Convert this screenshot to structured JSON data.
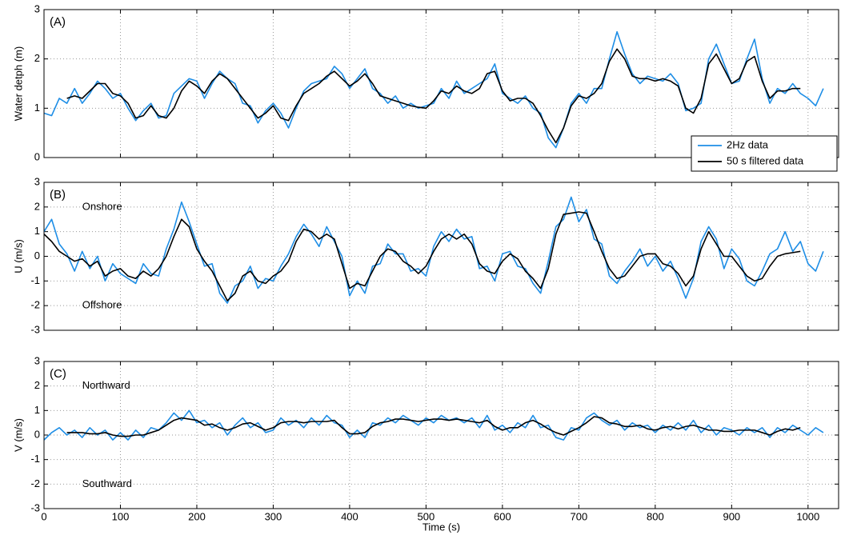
{
  "chart_data": [
    {
      "type": "line",
      "panel_label": "(A)",
      "ylabel": "Water detph (m)",
      "legend": "lower right",
      "grid": true,
      "x_tick_labels": false,
      "xlim": [
        0,
        1040
      ],
      "ylim": [
        0,
        3
      ],
      "xticks": [
        0,
        100,
        200,
        300,
        400,
        500,
        600,
        700,
        800,
        900,
        1000
      ],
      "yticks": [
        0,
        1,
        2,
        3
      ],
      "x": [
        0,
        10,
        20,
        30,
        40,
        50,
        60,
        70,
        80,
        90,
        100,
        110,
        120,
        130,
        140,
        150,
        160,
        170,
        180,
        190,
        200,
        210,
        220,
        230,
        240,
        250,
        260,
        270,
        280,
        290,
        300,
        310,
        320,
        330,
        340,
        350,
        360,
        370,
        380,
        390,
        400,
        410,
        420,
        430,
        440,
        450,
        460,
        470,
        480,
        490,
        500,
        510,
        520,
        530,
        540,
        550,
        560,
        570,
        580,
        590,
        600,
        610,
        620,
        630,
        640,
        650,
        660,
        670,
        680,
        690,
        700,
        710,
        720,
        730,
        740,
        750,
        760,
        770,
        780,
        790,
        800,
        810,
        820,
        830,
        840,
        850,
        860,
        870,
        880,
        890,
        900,
        910,
        920,
        930,
        940,
        950,
        960,
        970,
        980,
        990,
        1000,
        1010,
        1020
      ],
      "series": [
        {
          "name": "2Hz data",
          "color": "#1e8ee6",
          "values": [
            0.9,
            0.85,
            1.2,
            1.1,
            1.4,
            1.1,
            1.3,
            1.55,
            1.4,
            1.2,
            1.3,
            1.0,
            0.75,
            0.95,
            1.1,
            0.8,
            0.85,
            1.3,
            1.45,
            1.6,
            1.55,
            1.2,
            1.5,
            1.75,
            1.6,
            1.5,
            1.1,
            1.05,
            0.7,
            0.95,
            1.1,
            0.9,
            0.6,
            1.0,
            1.35,
            1.5,
            1.55,
            1.6,
            1.85,
            1.7,
            1.4,
            1.6,
            1.8,
            1.4,
            1.3,
            1.1,
            1.25,
            1.0,
            1.1,
            1.0,
            1.05,
            1.1,
            1.4,
            1.2,
            1.55,
            1.3,
            1.4,
            1.5,
            1.6,
            1.9,
            1.3,
            1.2,
            1.1,
            1.25,
            1.0,
            0.9,
            0.4,
            0.2,
            0.6,
            1.1,
            1.3,
            1.1,
            1.4,
            1.4,
            2.0,
            2.55,
            2.1,
            1.7,
            1.5,
            1.65,
            1.6,
            1.55,
            1.7,
            1.5,
            0.95,
            1.0,
            1.1,
            2.0,
            2.3,
            1.9,
            1.5,
            1.55,
            2.0,
            2.4,
            1.6,
            1.1,
            1.4,
            1.3,
            1.5,
            1.3,
            1.2,
            1.05,
            1.4
          ]
        },
        {
          "name": "50 s filtered data",
          "color": "#000000",
          "values": [
            null,
            null,
            null,
            1.2,
            1.25,
            1.2,
            1.35,
            1.5,
            1.5,
            1.3,
            1.25,
            1.1,
            0.8,
            0.85,
            1.05,
            0.85,
            0.8,
            1.0,
            1.35,
            1.55,
            1.45,
            1.3,
            1.55,
            1.7,
            1.6,
            1.4,
            1.2,
            1.0,
            0.8,
            0.9,
            1.05,
            0.8,
            0.75,
            1.05,
            1.3,
            1.4,
            1.5,
            1.65,
            1.75,
            1.6,
            1.45,
            1.55,
            1.7,
            1.5,
            1.25,
            1.2,
            1.15,
            1.1,
            1.05,
            1.02,
            1.0,
            1.15,
            1.35,
            1.3,
            1.45,
            1.35,
            1.3,
            1.4,
            1.7,
            1.75,
            1.35,
            1.15,
            1.2,
            1.2,
            1.1,
            0.85,
            0.55,
            0.3,
            0.6,
            1.05,
            1.25,
            1.2,
            1.3,
            1.5,
            1.95,
            2.2,
            2.0,
            1.65,
            1.6,
            1.6,
            1.55,
            1.6,
            1.55,
            1.45,
            1.0,
            0.9,
            1.2,
            1.9,
            2.1,
            1.8,
            1.5,
            1.6,
            1.95,
            2.05,
            1.55,
            1.2,
            1.35,
            1.35,
            1.4,
            1.4,
            null,
            null,
            null
          ]
        }
      ]
    },
    {
      "type": "line",
      "panel_label": "(B)",
      "ylabel": "U (m/s)",
      "annotations": [
        "Onshore",
        "Offshore"
      ],
      "grid": true,
      "x_tick_labels": false,
      "xlim": [
        0,
        1040
      ],
      "ylim": [
        -3,
        3
      ],
      "xticks": [
        0,
        100,
        200,
        300,
        400,
        500,
        600,
        700,
        800,
        900,
        1000
      ],
      "yticks": [
        -3,
        -2,
        -1,
        0,
        1,
        2,
        3
      ],
      "x": [
        0,
        10,
        20,
        30,
        40,
        50,
        60,
        70,
        80,
        90,
        100,
        110,
        120,
        130,
        140,
        150,
        160,
        170,
        180,
        190,
        200,
        210,
        220,
        230,
        240,
        250,
        260,
        270,
        280,
        290,
        300,
        310,
        320,
        330,
        340,
        350,
        360,
        370,
        380,
        390,
        400,
        410,
        420,
        430,
        440,
        450,
        460,
        470,
        480,
        490,
        500,
        510,
        520,
        530,
        540,
        550,
        560,
        570,
        580,
        590,
        600,
        610,
        620,
        630,
        640,
        650,
        660,
        670,
        680,
        690,
        700,
        710,
        720,
        730,
        740,
        750,
        760,
        770,
        780,
        790,
        800,
        810,
        820,
        830,
        840,
        850,
        860,
        870,
        880,
        890,
        900,
        910,
        920,
        930,
        940,
        950,
        960,
        970,
        980,
        990,
        1000,
        1010,
        1020
      ],
      "series": [
        {
          "color": "#1e8ee6",
          "values": [
            1.0,
            1.5,
            0.5,
            0.1,
            -0.6,
            0.2,
            -0.5,
            0.0,
            -1.0,
            -0.3,
            -0.7,
            -0.9,
            -1.1,
            -0.3,
            -0.7,
            -0.8,
            0.3,
            1.1,
            2.2,
            1.4,
            0.5,
            -0.4,
            -0.3,
            -1.5,
            -1.9,
            -1.2,
            -1.0,
            -0.4,
            -1.3,
            -0.9,
            -1.0,
            -0.4,
            0.1,
            0.8,
            1.3,
            0.9,
            0.4,
            1.2,
            0.6,
            0.0,
            -1.6,
            -1.0,
            -1.5,
            -0.4,
            -0.3,
            0.5,
            0.1,
            0.1,
            -0.6,
            -0.5,
            -0.8,
            0.4,
            1.0,
            0.6,
            1.1,
            0.7,
            0.8,
            -0.5,
            -0.4,
            -1.0,
            0.1,
            0.2,
            -0.4,
            -0.5,
            -1.1,
            -1.5,
            -0.2,
            1.2,
            1.5,
            2.4,
            1.4,
            1.9,
            0.7,
            0.5,
            -0.8,
            -1.1,
            -0.6,
            -0.2,
            0.3,
            -0.4,
            0.0,
            -0.6,
            -0.2,
            -0.9,
            -1.7,
            -0.9,
            0.6,
            1.2,
            0.7,
            -0.5,
            0.3,
            -0.1,
            -1.0,
            -1.2,
            -0.6,
            0.1,
            0.3,
            1.0,
            0.2,
            0.6,
            -0.3,
            -0.6,
            0.2
          ]
        },
        {
          "color": "#000000",
          "values": [
            0.9,
            0.6,
            0.2,
            0.0,
            -0.2,
            -0.1,
            -0.4,
            -0.2,
            -0.8,
            -0.6,
            -0.5,
            -0.8,
            -0.9,
            -0.6,
            -0.8,
            -0.5,
            0.0,
            0.8,
            1.5,
            1.2,
            0.3,
            -0.2,
            -0.6,
            -1.2,
            -1.8,
            -1.5,
            -0.8,
            -0.6,
            -1.0,
            -1.1,
            -0.8,
            -0.6,
            -0.2,
            0.6,
            1.1,
            1.0,
            0.7,
            0.9,
            0.7,
            -0.3,
            -1.3,
            -1.1,
            -1.2,
            -0.6,
            0.0,
            0.3,
            0.2,
            -0.2,
            -0.4,
            -0.7,
            -0.4,
            0.2,
            0.7,
            0.9,
            0.7,
            0.9,
            0.5,
            -0.3,
            -0.6,
            -0.7,
            -0.2,
            0.1,
            -0.1,
            -0.6,
            -0.9,
            -1.3,
            -0.5,
            0.9,
            1.7,
            1.75,
            1.8,
            1.75,
            1.0,
            0.2,
            -0.5,
            -0.9,
            -0.8,
            -0.4,
            0.0,
            0.1,
            0.1,
            -0.3,
            -0.4,
            -0.7,
            -1.2,
            -0.8,
            0.3,
            1.0,
            0.5,
            0.0,
            0.0,
            -0.4,
            -0.8,
            -1.0,
            -0.9,
            -0.4,
            0.0,
            0.1,
            0.15,
            0.2,
            null,
            null,
            null
          ]
        }
      ]
    },
    {
      "type": "line",
      "panel_label": "(C)",
      "ylabel": "V (m/s)",
      "xlabel": "Time (s)",
      "annotations": [
        "Northward",
        "Southward"
      ],
      "grid": true,
      "x_tick_labels": true,
      "xlim": [
        0,
        1040
      ],
      "ylim": [
        -3,
        3
      ],
      "xticks": [
        0,
        100,
        200,
        300,
        400,
        500,
        600,
        700,
        800,
        900,
        1000
      ],
      "yticks": [
        -3,
        -2,
        -1,
        0,
        1,
        2,
        3
      ],
      "x": [
        0,
        10,
        20,
        30,
        40,
        50,
        60,
        70,
        80,
        90,
        100,
        110,
        120,
        130,
        140,
        150,
        160,
        170,
        180,
        190,
        200,
        210,
        220,
        230,
        240,
        250,
        260,
        270,
        280,
        290,
        300,
        310,
        320,
        330,
        340,
        350,
        360,
        370,
        380,
        390,
        400,
        410,
        420,
        430,
        440,
        450,
        460,
        470,
        480,
        490,
        500,
        510,
        520,
        530,
        540,
        550,
        560,
        570,
        580,
        590,
        600,
        610,
        620,
        630,
        640,
        650,
        660,
        670,
        680,
        690,
        700,
        710,
        720,
        730,
        740,
        750,
        760,
        770,
        780,
        790,
        800,
        810,
        820,
        830,
        840,
        850,
        860,
        870,
        880,
        890,
        900,
        910,
        920,
        930,
        940,
        950,
        960,
        970,
        980,
        990,
        1000,
        1010,
        1020
      ],
      "series": [
        {
          "color": "#1e8ee6",
          "values": [
            -0.2,
            0.1,
            0.3,
            0.0,
            0.2,
            -0.1,
            0.3,
            0.0,
            0.2,
            -0.2,
            0.1,
            -0.2,
            0.2,
            -0.1,
            0.3,
            0.2,
            0.5,
            0.9,
            0.6,
            1.0,
            0.5,
            0.6,
            0.3,
            0.5,
            0.0,
            0.4,
            0.7,
            0.3,
            0.5,
            0.1,
            0.2,
            0.7,
            0.4,
            0.6,
            0.3,
            0.7,
            0.4,
            0.8,
            0.5,
            0.4,
            -0.1,
            0.2,
            -0.1,
            0.5,
            0.4,
            0.7,
            0.5,
            0.8,
            0.6,
            0.4,
            0.7,
            0.5,
            0.8,
            0.6,
            0.7,
            0.5,
            0.7,
            0.3,
            0.8,
            0.2,
            0.4,
            0.1,
            0.5,
            0.3,
            0.8,
            0.3,
            0.4,
            -0.1,
            -0.2,
            0.3,
            0.2,
            0.7,
            0.9,
            0.6,
            0.4,
            0.6,
            0.2,
            0.5,
            0.3,
            0.4,
            0.1,
            0.4,
            0.2,
            0.5,
            0.2,
            0.6,
            0.1,
            0.4,
            0.0,
            0.3,
            0.2,
            0.0,
            0.3,
            0.1,
            0.3,
            -0.1,
            0.3,
            0.1,
            0.4,
            0.2,
            0.0,
            0.3,
            0.1
          ]
        },
        {
          "color": "#000000",
          "values": [
            null,
            null,
            null,
            0.1,
            0.1,
            0.1,
            0.05,
            0.05,
            0.1,
            0.0,
            -0.05,
            -0.05,
            0.0,
            0.0,
            0.1,
            0.2,
            0.4,
            0.6,
            0.7,
            0.65,
            0.6,
            0.4,
            0.45,
            0.3,
            0.2,
            0.3,
            0.45,
            0.5,
            0.35,
            0.2,
            0.3,
            0.5,
            0.55,
            0.55,
            0.5,
            0.55,
            0.55,
            0.55,
            0.6,
            0.3,
            0.05,
            0.05,
            0.1,
            0.35,
            0.5,
            0.55,
            0.65,
            0.65,
            0.6,
            0.55,
            0.6,
            0.65,
            0.65,
            0.6,
            0.65,
            0.6,
            0.55,
            0.5,
            0.6,
            0.35,
            0.2,
            0.3,
            0.3,
            0.5,
            0.6,
            0.45,
            0.25,
            0.1,
            0.0,
            0.15,
            0.3,
            0.5,
            0.75,
            0.7,
            0.5,
            0.45,
            0.35,
            0.35,
            0.4,
            0.25,
            0.2,
            0.3,
            0.35,
            0.25,
            0.35,
            0.4,
            0.3,
            0.2,
            0.2,
            0.15,
            0.15,
            0.2,
            0.2,
            0.2,
            0.1,
            0.0,
            0.15,
            0.25,
            0.2,
            0.3,
            null,
            null,
            null
          ]
        }
      ]
    }
  ]
}
